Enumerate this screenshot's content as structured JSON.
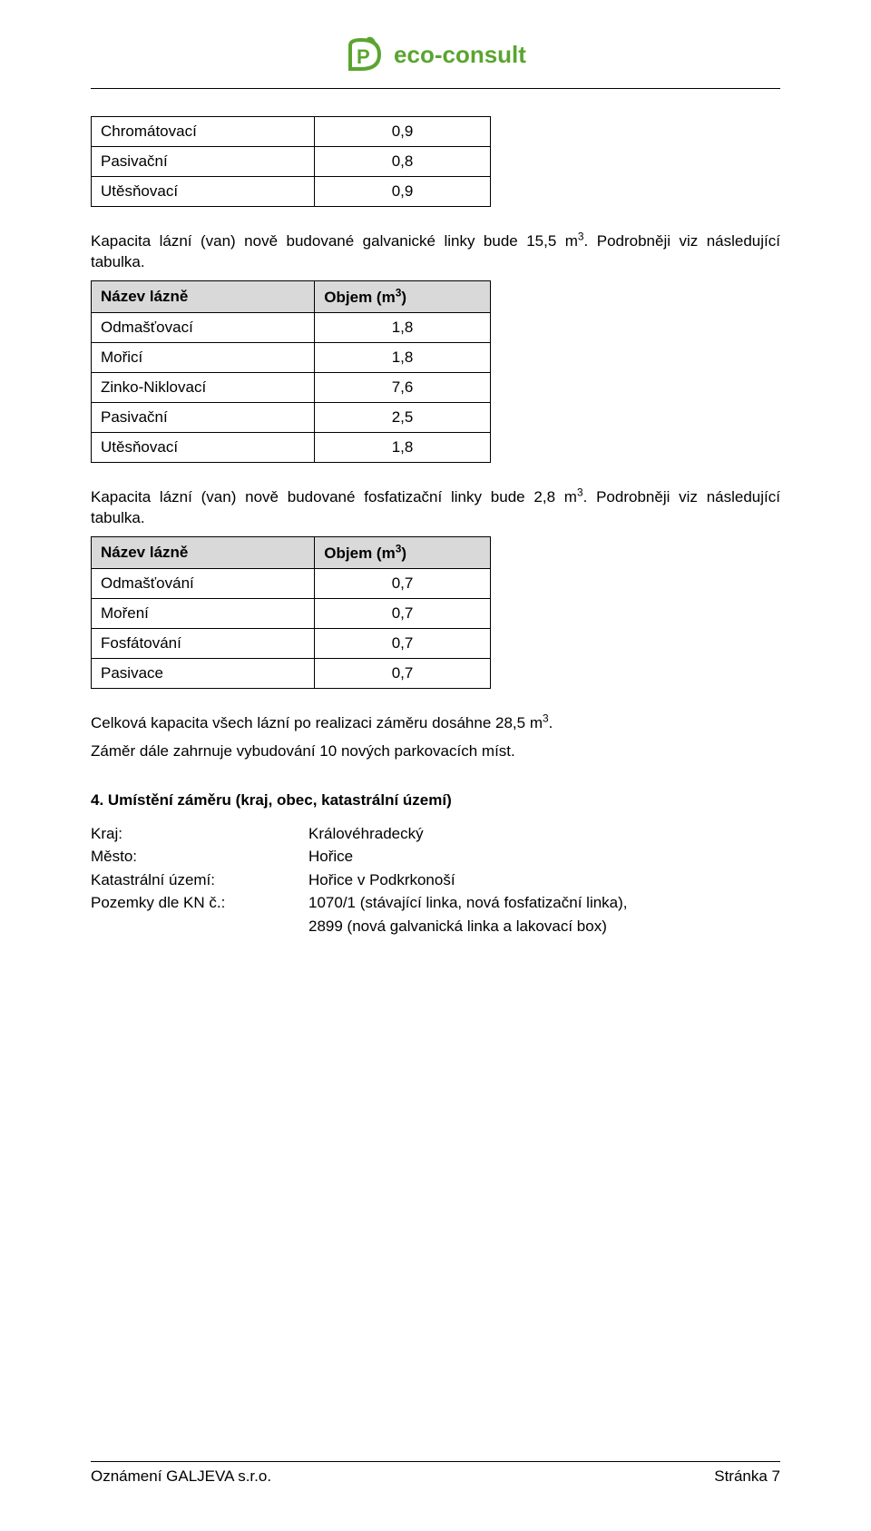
{
  "logo": {
    "brand": "eco-consult",
    "brand_color": "#5aa530"
  },
  "tables": {
    "t1": {
      "rows": [
        {
          "label": "Chromátovací",
          "value": "0,9"
        },
        {
          "label": "Pasivační",
          "value": "0,8"
        },
        {
          "label": "Utěsňovací",
          "value": "0,9"
        }
      ]
    },
    "t2": {
      "header": {
        "label": "Název lázně",
        "value_html": "Objem (m³)"
      },
      "rows": [
        {
          "label": "Odmašťovací",
          "value": "1,8"
        },
        {
          "label": "Mořicí",
          "value": "1,8"
        },
        {
          "label": "Zinko-Niklovací",
          "value": "7,6"
        },
        {
          "label": "Pasivační",
          "value": "2,5"
        },
        {
          "label": "Utěsňovací",
          "value": "1,8"
        }
      ]
    },
    "t3": {
      "header": {
        "label": "Název lázně",
        "value_html": "Objem (m³)"
      },
      "rows": [
        {
          "label": "Odmašťování",
          "value": "0,7"
        },
        {
          "label": "Moření",
          "value": "0,7"
        },
        {
          "label": "Fosfátování",
          "value": "0,7"
        },
        {
          "label": "Pasivace",
          "value": "0,7"
        }
      ]
    }
  },
  "paragraphs": {
    "p1": "Kapacita lázní (van) nově budované galvanické linky bude 15,5 m³. Podrobněji viz následující tabulka.",
    "p2": "Kapacita lázní (van) nově budované fosfatizační linky bude 2,8 m³. Podrobněji viz následující tabulka.",
    "p3": "Celková kapacita všech lázní po realizaci záměru dosáhne 28,5 m³.",
    "p4": "Záměr dále zahrnuje vybudování 10 nových parkovacích míst."
  },
  "section4": {
    "title": "4. Umístění záměru (kraj, obec, katastrální území)",
    "rows": [
      {
        "k": "Kraj:",
        "v": "Královéhradecký"
      },
      {
        "k": "Město:",
        "v": "Hořice"
      },
      {
        "k": "Katastrální území:",
        "v": "Hořice v Podkrkonoší"
      },
      {
        "k": "Pozemky dle KN č.:",
        "v": "1070/1 (stávající linka, nová fosfatizační linka),"
      }
    ],
    "extra_line": "2899 (nová galvanická linka a lakovací box)"
  },
  "footer": {
    "left": "Oznámení GALJEVA s.r.o.",
    "right": "Stránka 7"
  }
}
